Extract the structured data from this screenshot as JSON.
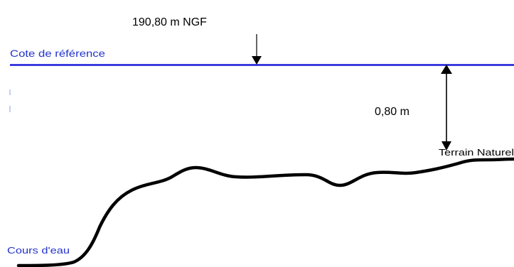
{
  "diagram": {
    "reference_level_value": "190,80 m NGF",
    "reference_line_label": "Cote de référence",
    "height_difference": "0,80 m",
    "natural_ground_label": "Terrain Naturel",
    "watercourse_label": "Cours d'eau"
  },
  "colors": {
    "reference_line": "#1a1adc",
    "reference_label": "#2233cc",
    "ground_profile": "#000000",
    "text": "#000000"
  }
}
